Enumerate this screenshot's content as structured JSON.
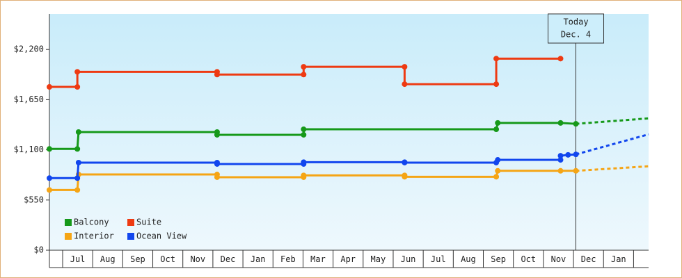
{
  "chart_data": {
    "type": "step-line",
    "categories": [
      null,
      "Jul",
      "Aug",
      "Sep",
      "Oct",
      "Nov",
      "Dec",
      "Jan",
      "Feb",
      "Mar",
      "Apr",
      "May",
      "Jun",
      "Jul",
      "Aug",
      "Sep",
      "Oct",
      "Nov",
      "Dec",
      "Jan"
    ],
    "xlim": [
      -0.44,
      19.5
    ],
    "ylim": [
      0,
      2590
    ],
    "yticks": [
      {
        "value": 0,
        "label": "$0"
      },
      {
        "value": 550,
        "label": "$550"
      },
      {
        "value": 1100,
        "label": "$1,100"
      },
      {
        "value": 1650,
        "label": "$1,650"
      },
      {
        "value": 2200,
        "label": "$2,200"
      }
    ],
    "annotation": {
      "lines": [
        "Today",
        "Dec. 4"
      ],
      "x": 17.08
    },
    "series": [
      {
        "name": "Balcony",
        "color": "#16991a",
        "x": [
          -0.44,
          0.49,
          0.53,
          5.14,
          5.14,
          8.02,
          8.02,
          14.43,
          14.48,
          16.57,
          17.08
        ],
        "values": [
          1110,
          1110,
          1295,
          1295,
          1265,
          1265,
          1325,
          1325,
          1395,
          1395,
          1385
        ],
        "forecast_x": [
          17.08,
          19.5
        ],
        "forecast_values": [
          1385,
          1445
        ]
      },
      {
        "name": "Suite",
        "color": "#ee3a12",
        "x": [
          -0.44,
          0.49,
          0.49,
          5.14,
          5.14,
          8.02,
          8.02,
          11.38,
          11.38,
          14.43,
          14.43,
          16.57
        ],
        "values": [
          1790,
          1790,
          1955,
          1955,
          1925,
          1925,
          2010,
          2010,
          1820,
          1820,
          2100,
          2100
        ]
      },
      {
        "name": "Interior",
        "color": "#f5a515",
        "x": [
          -0.44,
          0.49,
          0.53,
          5.14,
          5.14,
          8.02,
          8.02,
          11.38,
          11.38,
          14.43,
          14.48,
          16.57,
          17.08
        ],
        "values": [
          660,
          660,
          830,
          830,
          800,
          800,
          820,
          820,
          805,
          805,
          870,
          870,
          870
        ],
        "forecast_x": [
          17.08,
          19.5
        ],
        "forecast_values": [
          870,
          920
        ]
      },
      {
        "name": "Ocean View",
        "color": "#1146ee",
        "x": [
          -0.44,
          0.49,
          0.53,
          5.14,
          5.14,
          8.02,
          8.02,
          11.38,
          11.38,
          14.43,
          14.48,
          16.57,
          16.57,
          16.82,
          17.08
        ],
        "values": [
          790,
          790,
          960,
          960,
          945,
          945,
          965,
          965,
          960,
          960,
          990,
          990,
          1035,
          1045,
          1050
        ],
        "forecast_x": [
          17.08,
          19.5
        ],
        "forecast_values": [
          1050,
          1270
        ]
      }
    ]
  }
}
